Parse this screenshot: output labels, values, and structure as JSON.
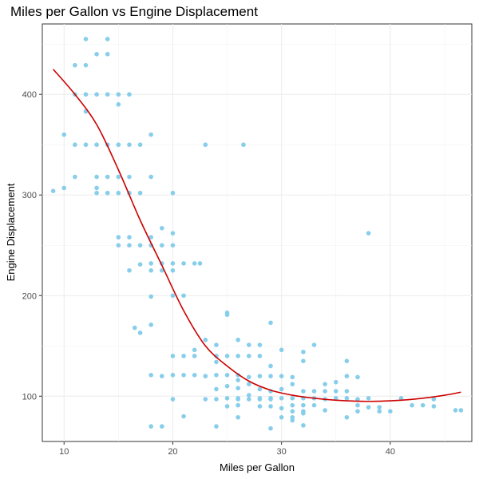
{
  "chart_data": {
    "type": "scatter",
    "title": "Miles per Gallon vs Engine Displacement",
    "xlabel": "Miles per Gallon",
    "ylabel": "Engine Displacement",
    "xlim": [
      8,
      47.5
    ],
    "ylim": [
      55,
      470
    ],
    "xticks": [
      10,
      20,
      30,
      40
    ],
    "yticks": [
      100,
      200,
      300,
      400
    ],
    "grid": true,
    "point_color": "#87CEEB",
    "line_color": "#CC0000",
    "points": [
      [
        9,
        304
      ],
      [
        10,
        307
      ],
      [
        10,
        360
      ],
      [
        11,
        318
      ],
      [
        11,
        350
      ],
      [
        11,
        400
      ],
      [
        11,
        429
      ],
      [
        12,
        350
      ],
      [
        12,
        383
      ],
      [
        12,
        400
      ],
      [
        12,
        429
      ],
      [
        12,
        455
      ],
      [
        13,
        302
      ],
      [
        13,
        307
      ],
      [
        13,
        318
      ],
      [
        13,
        350
      ],
      [
        13,
        400
      ],
      [
        13,
        440
      ],
      [
        14,
        302
      ],
      [
        14,
        318
      ],
      [
        14,
        350
      ],
      [
        14,
        400
      ],
      [
        14,
        440
      ],
      [
        14,
        455
      ],
      [
        15,
        250
      ],
      [
        15,
        258
      ],
      [
        15,
        302
      ],
      [
        15,
        318
      ],
      [
        15,
        350
      ],
      [
        15,
        390
      ],
      [
        15,
        400
      ],
      [
        16,
        225
      ],
      [
        16,
        250
      ],
      [
        16,
        258
      ],
      [
        16,
        302
      ],
      [
        16,
        318
      ],
      [
        16,
        350
      ],
      [
        16,
        400
      ],
      [
        16.5,
        168
      ],
      [
        17,
        163
      ],
      [
        17,
        231
      ],
      [
        17,
        250
      ],
      [
        17,
        302
      ],
      [
        17,
        350
      ],
      [
        18,
        121
      ],
      [
        18,
        171
      ],
      [
        18,
        199
      ],
      [
        18,
        225
      ],
      [
        18,
        232
      ],
      [
        18,
        250
      ],
      [
        18,
        258
      ],
      [
        18,
        318
      ],
      [
        18,
        360
      ],
      [
        18,
        70
      ],
      [
        19,
        70
      ],
      [
        19,
        120
      ],
      [
        19,
        225
      ],
      [
        19,
        232
      ],
      [
        19,
        250
      ],
      [
        19,
        267
      ],
      [
        20,
        97
      ],
      [
        20,
        121
      ],
      [
        20,
        140
      ],
      [
        20,
        200
      ],
      [
        20,
        225
      ],
      [
        20,
        232
      ],
      [
        20,
        250
      ],
      [
        20,
        262
      ],
      [
        20,
        302
      ],
      [
        21,
        121
      ],
      [
        21,
        140
      ],
      [
        21,
        200
      ],
      [
        21,
        232
      ],
      [
        21,
        80
      ],
      [
        22,
        121
      ],
      [
        22,
        140
      ],
      [
        22,
        146
      ],
      [
        22,
        232
      ],
      [
        22.5,
        232
      ],
      [
        23,
        97
      ],
      [
        23,
        120
      ],
      [
        23,
        350
      ],
      [
        23,
        156
      ],
      [
        24,
        97
      ],
      [
        24,
        107
      ],
      [
        24,
        121
      ],
      [
        24,
        134
      ],
      [
        24,
        140
      ],
      [
        24,
        151
      ],
      [
        24,
        70
      ],
      [
        25,
        90
      ],
      [
        25,
        98
      ],
      [
        25,
        110
      ],
      [
        25,
        121
      ],
      [
        25,
        140
      ],
      [
        25,
        181
      ],
      [
        25,
        183
      ],
      [
        26,
        79
      ],
      [
        26,
        91
      ],
      [
        26,
        97
      ],
      [
        26,
        98
      ],
      [
        26,
        108
      ],
      [
        26,
        116
      ],
      [
        26,
        121
      ],
      [
        26,
        140
      ],
      [
        26,
        156
      ],
      [
        26.5,
        350
      ],
      [
        27,
        97
      ],
      [
        27,
        101
      ],
      [
        27,
        112
      ],
      [
        27,
        119
      ],
      [
        27,
        140
      ],
      [
        27,
        151
      ],
      [
        28,
        90
      ],
      [
        28,
        97
      ],
      [
        28,
        98
      ],
      [
        28,
        107
      ],
      [
        28,
        120
      ],
      [
        28,
        140
      ],
      [
        28,
        151
      ],
      [
        29,
        68
      ],
      [
        29,
        90
      ],
      [
        29,
        97
      ],
      [
        29,
        98
      ],
      [
        29,
        105
      ],
      [
        29,
        120
      ],
      [
        29,
        130
      ],
      [
        29,
        173
      ],
      [
        30,
        79
      ],
      [
        30,
        88
      ],
      [
        30,
        98
      ],
      [
        30,
        107
      ],
      [
        30,
        120
      ],
      [
        30,
        146
      ],
      [
        31,
        76
      ],
      [
        31,
        79
      ],
      [
        31,
        85
      ],
      [
        31,
        91
      ],
      [
        31,
        98
      ],
      [
        31,
        112
      ],
      [
        31,
        119
      ],
      [
        32,
        71
      ],
      [
        32,
        83
      ],
      [
        32,
        85
      ],
      [
        32,
        91
      ],
      [
        32,
        98
      ],
      [
        32,
        105
      ],
      [
        32,
        135
      ],
      [
        32,
        144
      ],
      [
        33,
        91
      ],
      [
        33,
        98
      ],
      [
        33,
        105
      ],
      [
        33,
        151
      ],
      [
        34,
        86
      ],
      [
        34,
        97
      ],
      [
        34,
        105
      ],
      [
        34,
        112
      ],
      [
        35,
        98
      ],
      [
        35,
        105
      ],
      [
        35,
        114
      ],
      [
        36,
        79
      ],
      [
        36,
        98
      ],
      [
        36,
        105
      ],
      [
        36,
        120
      ],
      [
        36,
        135
      ],
      [
        37,
        85
      ],
      [
        37,
        91
      ],
      [
        37,
        97
      ],
      [
        37,
        119
      ],
      [
        38,
        89
      ],
      [
        38,
        98
      ],
      [
        38,
        262
      ],
      [
        39,
        85
      ],
      [
        39,
        89
      ],
      [
        40,
        85
      ],
      [
        41,
        98
      ],
      [
        42,
        91
      ],
      [
        43,
        91
      ],
      [
        44,
        90
      ],
      [
        44,
        97
      ],
      [
        46,
        86
      ],
      [
        46.5,
        86
      ]
    ],
    "trend_line": [
      [
        9,
        425
      ],
      [
        11,
        400
      ],
      [
        13,
        370
      ],
      [
        15,
        325
      ],
      [
        17,
        275
      ],
      [
        19,
        230
      ],
      [
        21,
        185
      ],
      [
        23,
        150
      ],
      [
        25,
        130
      ],
      [
        27,
        115
      ],
      [
        29,
        106
      ],
      [
        31,
        101
      ],
      [
        33,
        98
      ],
      [
        35,
        96
      ],
      [
        37,
        95
      ],
      [
        39,
        95
      ],
      [
        41,
        96
      ],
      [
        43,
        98
      ],
      [
        45,
        101
      ],
      [
        46.5,
        104
      ]
    ]
  }
}
